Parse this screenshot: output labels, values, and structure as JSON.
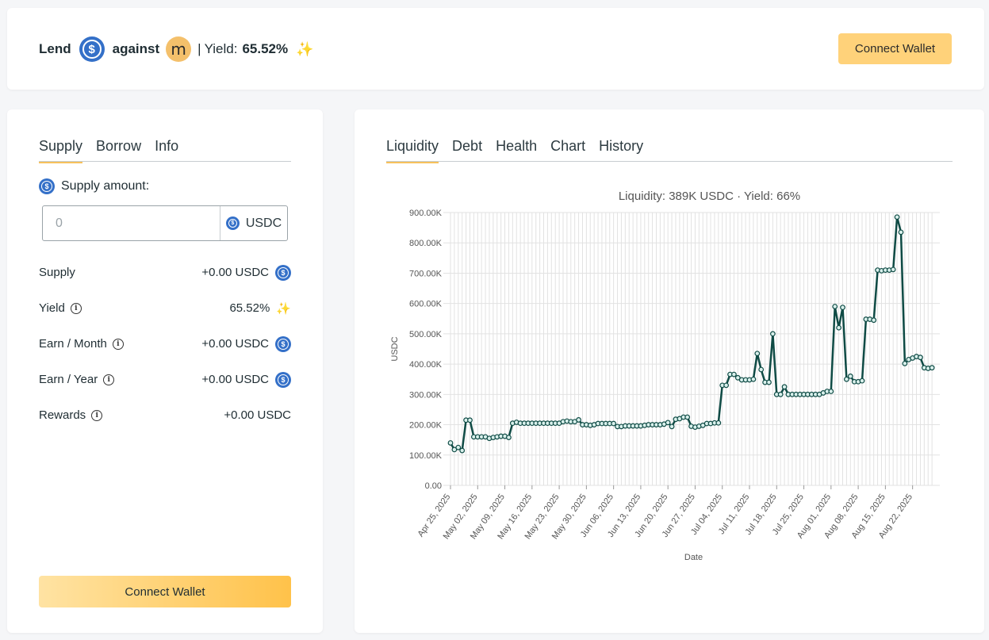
{
  "header": {
    "lend_label": "Lend",
    "usdc_icon": "usdc-coin-icon",
    "against_label": "against",
    "collateral_symbol": "m",
    "separator": "|",
    "yield_label": "Yield:",
    "yield_value": "65.52%",
    "sparkle": "✨",
    "connect_wallet": "Connect Wallet"
  },
  "left": {
    "tabs": [
      "Supply",
      "Borrow",
      "Info"
    ],
    "active_tab": "Supply",
    "supply_amount_label": "Supply amount:",
    "amount_placeholder": "0",
    "amount_unit": "USDC",
    "rows": [
      {
        "label": "Supply",
        "value": "+0.00 USDC",
        "info": false,
        "icon": "usdc"
      },
      {
        "label": "Yield",
        "value": "65.52%",
        "info": true,
        "icon": "sparkle"
      },
      {
        "label": "Earn / Month",
        "value": "+0.00 USDC",
        "info": true,
        "icon": "usdc"
      },
      {
        "label": "Earn / Year",
        "value": "+0.00 USDC",
        "info": true,
        "icon": "usdc"
      },
      {
        "label": "Rewards",
        "value": "+0.00 USDC",
        "info": true,
        "icon": "none"
      }
    ],
    "connect_wallet": "Connect Wallet"
  },
  "right": {
    "tabs": [
      "Liquidity",
      "Debt",
      "Health",
      "Chart",
      "History"
    ],
    "active_tab": "Liquidity"
  },
  "colors": {
    "accent": "#ffd27a",
    "line": "#0f4b45",
    "usdc": "#3470c8"
  },
  "chart_data": {
    "type": "line",
    "title": "Liquidity: 389K USDC · Yield: 66%",
    "xlabel": "Date",
    "ylabel": "USDC",
    "ylim": [
      0,
      900000
    ],
    "y_ticks": [
      "0.00",
      "100.00K",
      "200.00K",
      "300.00K",
      "400.00K",
      "500.00K",
      "600.00K",
      "700.00K",
      "800.00K",
      "900.00K"
    ],
    "x_ticks": [
      "Apr 25, 2025",
      "May 02, 2025",
      "May 09, 2025",
      "May 16, 2025",
      "May 23, 2025",
      "May 30, 2025",
      "Jun 06, 2025",
      "Jun 13, 2025",
      "Jun 20, 2025",
      "Jun 27, 2025",
      "Jul 04, 2025",
      "Jul 11, 2025",
      "Jul 18, 2025",
      "Jul 25, 2025",
      "Aug 01, 2025",
      "Aug 08, 2025",
      "Aug 15, 2025",
      "Aug 22, 2025"
    ],
    "grid": true,
    "series": [
      {
        "x": [
          "2025-04-25",
          "2025-04-26",
          "2025-04-27",
          "2025-04-28",
          "2025-04-29",
          "2025-04-30",
          "2025-05-01",
          "2025-05-02",
          "2025-05-03",
          "2025-05-04",
          "2025-05-05",
          "2025-05-06",
          "2025-05-07",
          "2025-05-08",
          "2025-05-09",
          "2025-05-10",
          "2025-05-11",
          "2025-05-12",
          "2025-05-13",
          "2025-05-14",
          "2025-05-15",
          "2025-05-16",
          "2025-05-17",
          "2025-05-18",
          "2025-05-19",
          "2025-05-20",
          "2025-05-21",
          "2025-05-22",
          "2025-05-23",
          "2025-05-24",
          "2025-05-25",
          "2025-05-26",
          "2025-05-27",
          "2025-05-28",
          "2025-05-29",
          "2025-05-30",
          "2025-05-31",
          "2025-06-01",
          "2025-06-02",
          "2025-06-03",
          "2025-06-04",
          "2025-06-05",
          "2025-06-06",
          "2025-06-07",
          "2025-06-08",
          "2025-06-09",
          "2025-06-10",
          "2025-06-11",
          "2025-06-12",
          "2025-06-13",
          "2025-06-14",
          "2025-06-15",
          "2025-06-16",
          "2025-06-17",
          "2025-06-18",
          "2025-06-19",
          "2025-06-20",
          "2025-06-21",
          "2025-06-22",
          "2025-06-23",
          "2025-06-24",
          "2025-06-25",
          "2025-06-26",
          "2025-06-27",
          "2025-06-28",
          "2025-06-29",
          "2025-06-30",
          "2025-07-01",
          "2025-07-02",
          "2025-07-03",
          "2025-07-04",
          "2025-07-05",
          "2025-07-06",
          "2025-07-07",
          "2025-07-08",
          "2025-07-09",
          "2025-07-10",
          "2025-07-11",
          "2025-07-12",
          "2025-07-13",
          "2025-07-14",
          "2025-07-15",
          "2025-07-16",
          "2025-07-17",
          "2025-07-18",
          "2025-07-19",
          "2025-07-20",
          "2025-07-21",
          "2025-07-22",
          "2025-07-23",
          "2025-07-24",
          "2025-07-25",
          "2025-07-26",
          "2025-07-27",
          "2025-07-28",
          "2025-07-29",
          "2025-07-30",
          "2025-07-31",
          "2025-08-01",
          "2025-08-02",
          "2025-08-03",
          "2025-08-04",
          "2025-08-05",
          "2025-08-06",
          "2025-08-07",
          "2025-08-08",
          "2025-08-09",
          "2025-08-10",
          "2025-08-11",
          "2025-08-12",
          "2025-08-13",
          "2025-08-14",
          "2025-08-15",
          "2025-08-16",
          "2025-08-17",
          "2025-08-18",
          "2025-08-19",
          "2025-08-20",
          "2025-08-21",
          "2025-08-22",
          "2025-08-23",
          "2025-08-24",
          "2025-08-25",
          "2025-08-26",
          "2025-08-27"
        ],
        "values": [
          140000,
          118000,
          125000,
          115000,
          215000,
          215000,
          160000,
          160000,
          160000,
          160000,
          155000,
          158000,
          160000,
          162000,
          162000,
          158000,
          205000,
          208000,
          205000,
          205000,
          205000,
          205000,
          205000,
          205000,
          205000,
          205000,
          205000,
          205000,
          205000,
          210000,
          212000,
          210000,
          210000,
          216000,
          200000,
          200000,
          198000,
          200000,
          204000,
          204000,
          204000,
          204000,
          204000,
          194000,
          194000,
          196000,
          196000,
          196000,
          196000,
          196000,
          198000,
          200000,
          200000,
          200000,
          200000,
          202000,
          207000,
          194000,
          218000,
          220000,
          225000,
          225000,
          195000,
          192000,
          195000,
          198000,
          204000,
          204000,
          206000,
          206000,
          330000,
          330000,
          366000,
          366000,
          355000,
          348000,
          348000,
          348000,
          350000,
          435000,
          382000,
          340000,
          340000,
          500000,
          300000,
          300000,
          325000,
          300000,
          300000,
          300000,
          300000,
          300000,
          300000,
          300000,
          300000,
          300000,
          305000,
          310000,
          310000,
          590000,
          520000,
          587000,
          350000,
          360000,
          342000,
          342000,
          345000,
          548000,
          548000,
          545000,
          710000,
          708000,
          710000,
          710000,
          712000,
          885000,
          835000,
          402000,
          415000,
          420000,
          425000,
          422000,
          388000,
          386000,
          388000
        ]
      }
    ]
  }
}
